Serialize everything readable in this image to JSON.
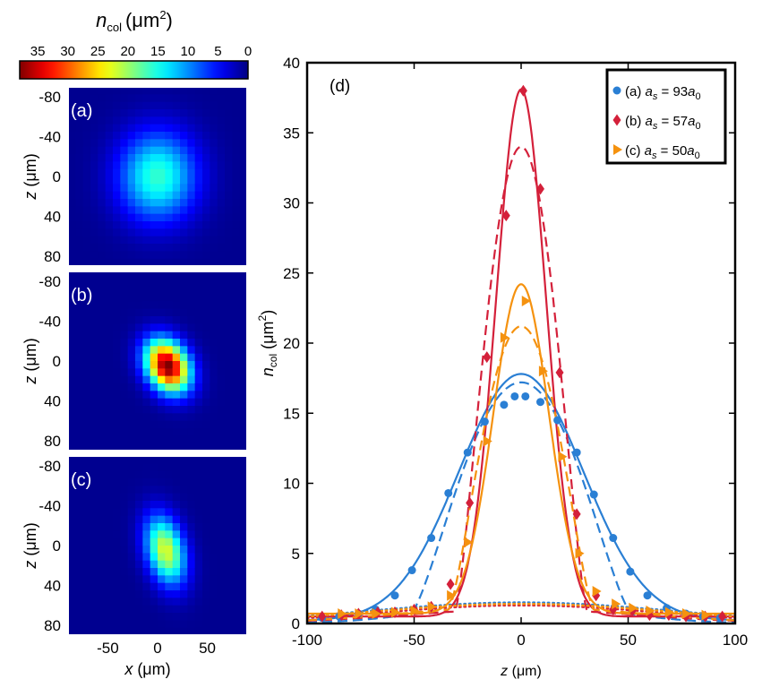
{
  "chart_data": [
    {
      "type": "heatmap",
      "panels": [
        "(a)",
        "(b)",
        "(c)"
      ],
      "colorbar": {
        "label_main": "n",
        "label_sub": "col",
        "label_unit": "(μm",
        "label_sup": "2",
        "label_close": ")",
        "ticks": [
          35,
          30,
          25,
          20,
          15,
          10,
          5,
          0
        ],
        "range": [
          0,
          38
        ]
      },
      "xlabel_main": "x",
      "xlabel_unit": " (μm)",
      "ylabel_main": "z",
      "ylabel_unit": " (μm)",
      "x_ticks": [
        -50,
        0,
        50
      ],
      "z_ticks": [
        -80,
        -40,
        0,
        40,
        80
      ],
      "x_range": [
        -90,
        90
      ],
      "z_range": [
        -90,
        90
      ],
      "clouds": [
        {
          "peak": 15.5,
          "center_x": 0,
          "center_z": 0,
          "sigma_x": 27,
          "sigma_z": 31,
          "tilt": 0
        },
        {
          "peak": 38,
          "center_x": 10,
          "center_z": 5,
          "sigma_x": 14,
          "sigma_z": 19,
          "tilt": -0.5
        },
        {
          "peak": 22,
          "center_x": 8,
          "center_z": 5,
          "sigma_x": 13,
          "sigma_z": 24,
          "tilt": -0.25
        }
      ]
    },
    {
      "type": "line",
      "panel_label": "(d)",
      "xlabel_main": "z",
      "xlabel_unit": " (μm)",
      "ylabel_main": "n",
      "ylabel_sub": "col",
      "ylabel_unit": " (μm",
      "ylabel_sup": "2",
      "ylabel_close": ")",
      "xlim": [
        -100,
        100
      ],
      "ylim": [
        0,
        40
      ],
      "x_ticks": [
        -100,
        -50,
        0,
        50,
        100
      ],
      "y_ticks": [
        0,
        5,
        10,
        15,
        20,
        25,
        30,
        35,
        40
      ],
      "legend_position": "top-right",
      "series": [
        {
          "name": "(a) a_s = 93a_0",
          "legend_prefix": "(a) ",
          "legend_eq": " = 93",
          "color": "#2a7fd4",
          "marker": "circle",
          "points": [
            [
              -93,
              0.4
            ],
            [
              -85,
              0.5
            ],
            [
              -76,
              0.7
            ],
            [
              -68,
              1.0
            ],
            [
              -59,
              2.0
            ],
            [
              -51,
              3.8
            ],
            [
              -42,
              6.1
            ],
            [
              -34,
              9.3
            ],
            [
              -25,
              12.2
            ],
            [
              -17,
              14.4
            ],
            [
              -8,
              15.6
            ],
            [
              -3,
              16.2
            ],
            [
              2,
              16.2
            ],
            [
              9,
              15.8
            ],
            [
              17,
              14.5
            ],
            [
              26,
              12.2
            ],
            [
              34,
              9.2
            ],
            [
              43,
              6.1
            ],
            [
              51,
              3.7
            ],
            [
              59,
              2.0
            ],
            [
              68,
              1.1
            ],
            [
              77,
              0.7
            ],
            [
              85,
              0.5
            ],
            [
              93,
              0.4
            ]
          ],
          "solid": {
            "peak": 17.6,
            "sigma": 29,
            "base": 0.2
          },
          "dashed": {
            "tf_peak": 15.7,
            "tf_R": 52,
            "tail_peak": 1.5,
            "tail_sigma": 40
          },
          "dotted": {
            "peak": 1.5,
            "sigma": 70
          }
        },
        {
          "name": "(b) a_s = 57a_0",
          "legend_prefix": "(b) ",
          "legend_eq": " = 57",
          "color": "#d4203a",
          "marker": "diamond",
          "points": [
            [
              -93,
              0.5
            ],
            [
              -84,
              0.6
            ],
            [
              -76,
              0.7
            ],
            [
              -67,
              0.8
            ],
            [
              -59,
              0.8
            ],
            [
              -50,
              1.0
            ],
            [
              -42,
              1.2
            ],
            [
              -33,
              2.8
            ],
            [
              -24,
              8.6
            ],
            [
              -16,
              19.0
            ],
            [
              -7,
              29.1
            ],
            [
              1,
              38.0
            ],
            [
              9,
              31.0
            ],
            [
              18,
              17.9
            ],
            [
              26,
              7.8
            ],
            [
              35,
              2.0
            ],
            [
              43,
              1.0
            ],
            [
              52,
              0.9
            ],
            [
              60,
              0.6
            ],
            [
              69,
              0.6
            ],
            [
              77,
              0.5
            ],
            [
              86,
              0.5
            ],
            [
              94,
              0.5
            ]
          ],
          "solid": {
            "peak": 37.6,
            "sigma": 11.6,
            "base": 0.5
          },
          "dashed": {
            "tf_peak": 33,
            "tf_R": 31,
            "tail_peak": 1.0,
            "tail_sigma": 55
          },
          "dotted": {
            "peak": 1.3,
            "sigma": 65
          }
        },
        {
          "name": "(c) a_s = 50a_0",
          "legend_prefix": "(c) ",
          "legend_eq": " = 50",
          "color": "#f5920f",
          "marker": "triangle",
          "points": [
            [
              -84,
              0.7
            ],
            [
              -76,
              0.7
            ],
            [
              -68,
              0.7
            ],
            [
              -59,
              0.8
            ],
            [
              -50,
              0.9
            ],
            [
              -42,
              1.2
            ],
            [
              -33,
              2.0
            ],
            [
              -25,
              5.8
            ],
            [
              -16,
              13.0
            ],
            [
              -8,
              20.4
            ],
            [
              2,
              23.0
            ],
            [
              10,
              18.0
            ],
            [
              19,
              11.9
            ],
            [
              27,
              5.0
            ],
            [
              35,
              2.3
            ],
            [
              44,
              1.4
            ],
            [
              52,
              1.1
            ],
            [
              60,
              0.9
            ],
            [
              69,
              0.8
            ],
            [
              77,
              0.7
            ],
            [
              86,
              0.6
            ]
          ],
          "solid": {
            "peak": 23.5,
            "sigma": 13,
            "base": 0.7
          },
          "dashed": {
            "tf_peak": 20,
            "tf_R": 34,
            "tail_peak": 1.2,
            "tail_sigma": 55
          },
          "dotted": {
            "peak": 1.4,
            "sigma": 70
          }
        }
      ]
    }
  ]
}
